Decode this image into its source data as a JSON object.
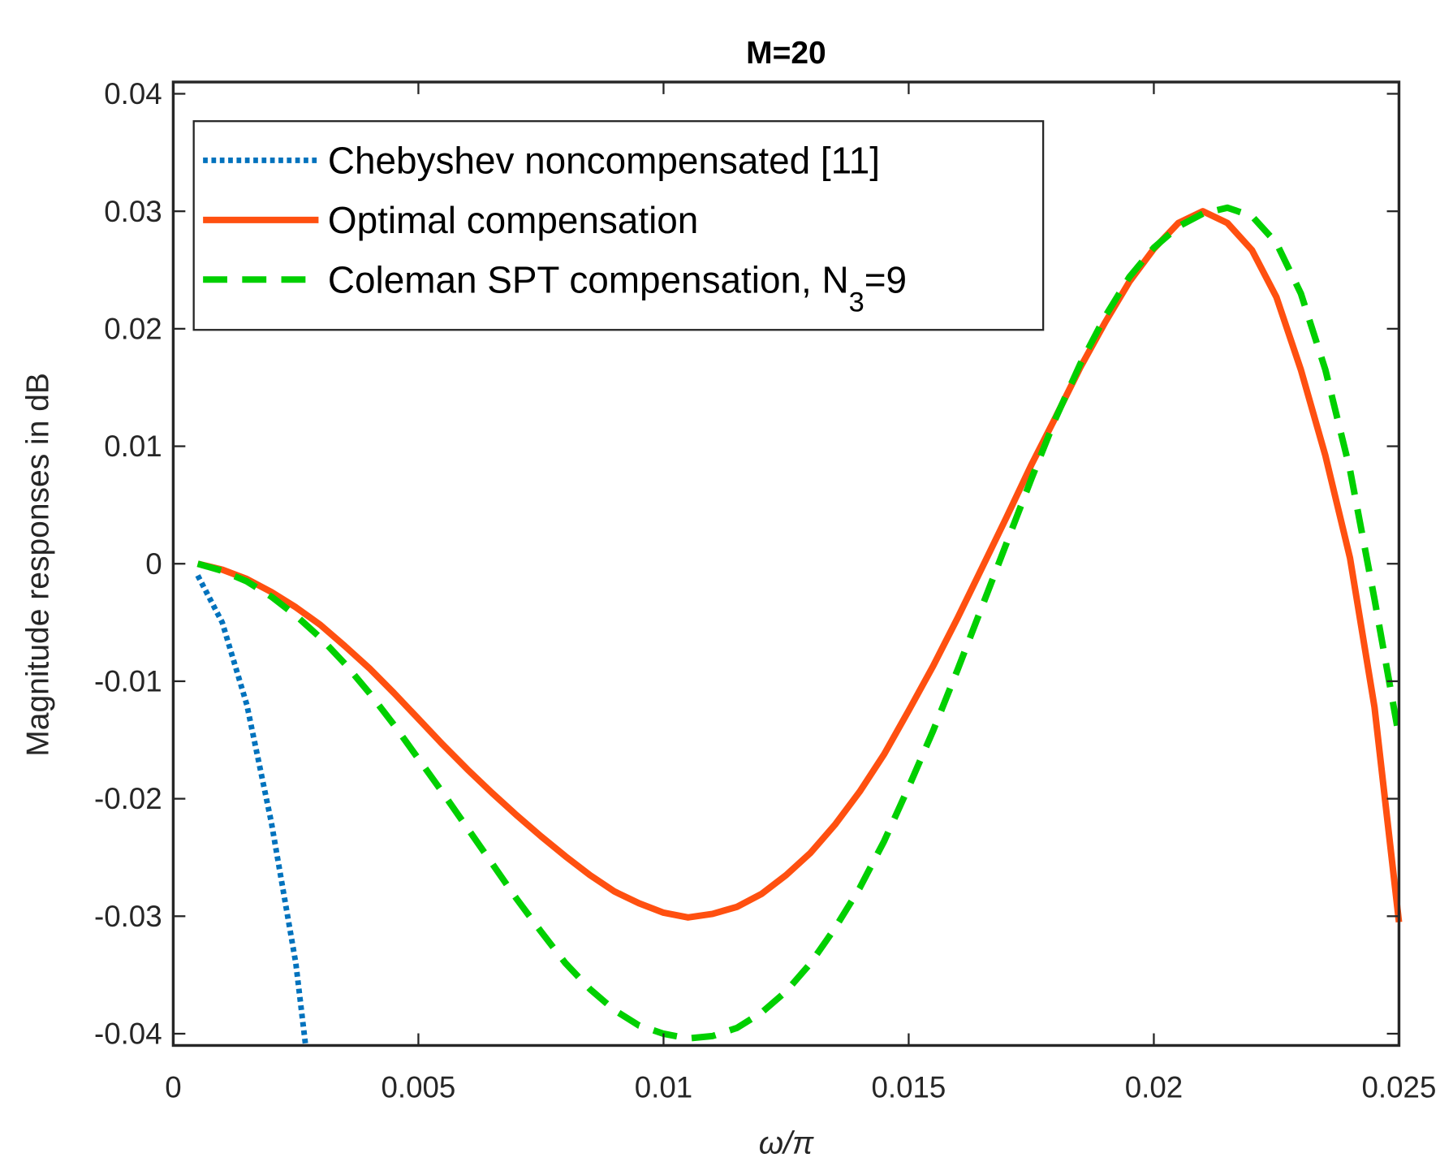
{
  "chart_data": {
    "type": "line",
    "title": "M=20",
    "xlabel": "ω/π",
    "ylabel": "Magnitude responses in dB",
    "xlim": [
      0,
      0.025
    ],
    "ylim": [
      -0.041,
      0.041
    ],
    "xticks": [
      0,
      0.005,
      0.01,
      0.015,
      0.02,
      0.025
    ],
    "xtick_labels": [
      "0",
      "0.005",
      "0.01",
      "0.015",
      "0.02",
      "0.025"
    ],
    "yticks": [
      -0.04,
      -0.03,
      -0.02,
      -0.01,
      0,
      0.01,
      0.02,
      0.03,
      0.04
    ],
    "ytick_labels": [
      "-0.04",
      "-0.03",
      "-0.02",
      "-0.01",
      "0",
      "0.01",
      "0.02",
      "0.03",
      "0.04"
    ],
    "grid": false,
    "legend_position": "top-left",
    "series": [
      {
        "name": "Chebyshev noncompensated [11]",
        "legend_subscript": "",
        "legend_suffix": "",
        "color": "#0072BD",
        "style": "dotted",
        "x": [
          0.0005,
          0.001,
          0.0015,
          0.002,
          0.0025,
          0.0027
        ],
        "y": [
          -0.001,
          -0.005,
          -0.012,
          -0.022,
          -0.034,
          -0.041
        ]
      },
      {
        "name": "Optimal compensation",
        "legend_subscript": "",
        "legend_suffix": "",
        "color": "#FF5010",
        "style": "solid",
        "x": [
          0.0005,
          0.001,
          0.0015,
          0.002,
          0.0025,
          0.003,
          0.0035,
          0.004,
          0.0045,
          0.005,
          0.0055,
          0.006,
          0.0065,
          0.007,
          0.0075,
          0.008,
          0.0085,
          0.009,
          0.0095,
          0.01,
          0.0105,
          0.011,
          0.0115,
          0.012,
          0.0125,
          0.013,
          0.0135,
          0.014,
          0.0145,
          0.015,
          0.0155,
          0.016,
          0.0165,
          0.017,
          0.0175,
          0.018,
          0.0185,
          0.019,
          0.0195,
          0.02,
          0.0205,
          0.021,
          0.0215,
          0.022,
          0.0225,
          0.023,
          0.0235,
          0.024,
          0.0245,
          0.025
        ],
        "y": [
          0,
          -0.0005,
          -0.0013,
          -0.0024,
          -0.0037,
          -0.0052,
          -0.007,
          -0.0089,
          -0.011,
          -0.0132,
          -0.0154,
          -0.0175,
          -0.0195,
          -0.0214,
          -0.0232,
          -0.0249,
          -0.0265,
          -0.0279,
          -0.0289,
          -0.0297,
          -0.0301,
          -0.0298,
          -0.0292,
          -0.0281,
          -0.0265,
          -0.0246,
          -0.0222,
          -0.0194,
          -0.0162,
          -0.0125,
          -0.0087,
          -0.0046,
          -0.0003,
          0.004,
          0.0084,
          0.0125,
          0.0167,
          0.0205,
          0.024,
          0.0268,
          0.029,
          0.03,
          0.029,
          0.0267,
          0.0227,
          0.0165,
          0.0092,
          0.0005,
          -0.0122,
          -0.0305
        ]
      },
      {
        "name": "Coleman SPT compensation, N",
        "legend_subscript": "3",
        "legend_suffix": "=9",
        "color": "#00D000",
        "style": "dashed",
        "x": [
          0.0005,
          0.001,
          0.0015,
          0.002,
          0.0025,
          0.003,
          0.0035,
          0.004,
          0.0045,
          0.005,
          0.0055,
          0.006,
          0.0065,
          0.007,
          0.0075,
          0.008,
          0.0085,
          0.009,
          0.0095,
          0.01,
          0.0105,
          0.011,
          0.0115,
          0.012,
          0.0125,
          0.013,
          0.0135,
          0.014,
          0.0145,
          0.015,
          0.0155,
          0.016,
          0.0165,
          0.017,
          0.0175,
          0.018,
          0.0185,
          0.019,
          0.0195,
          0.02,
          0.0205,
          0.021,
          0.0215,
          0.022,
          0.0225,
          0.023,
          0.0235,
          0.024,
          0.0245,
          0.025
        ],
        "y": [
          0,
          -0.0006,
          -0.0015,
          -0.0028,
          -0.0044,
          -0.0063,
          -0.0085,
          -0.011,
          -0.0137,
          -0.0166,
          -0.0195,
          -0.0225,
          -0.0255,
          -0.0285,
          -0.0313,
          -0.034,
          -0.0362,
          -0.038,
          -0.0393,
          -0.04,
          -0.0404,
          -0.0402,
          -0.0395,
          -0.0382,
          -0.0364,
          -0.034,
          -0.031,
          -0.0276,
          -0.0236,
          -0.019,
          -0.0142,
          -0.009,
          -0.0036,
          0.0018,
          0.0072,
          0.0124,
          0.017,
          0.021,
          0.0244,
          0.0269,
          0.0287,
          0.0298,
          0.0303,
          0.0296,
          0.0273,
          0.023,
          0.0165,
          0.008,
          -0.003,
          -0.0147
        ]
      }
    ]
  }
}
